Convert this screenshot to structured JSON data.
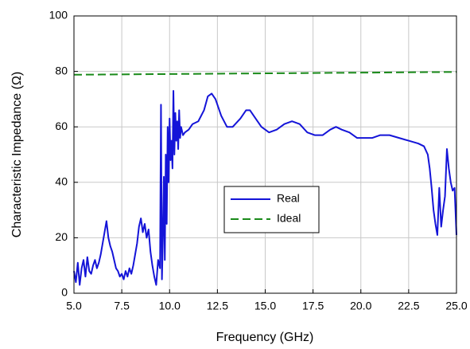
{
  "chart_data": {
    "type": "line",
    "xlabel": "Frequency (GHz)",
    "ylabel": "Characteristic Impedance (Ω)",
    "series": [
      {
        "name": "Real",
        "color": "#1414d8",
        "linestyle": "solid",
        "x": [
          5.0,
          5.1,
          5.2,
          5.3,
          5.4,
          5.5,
          5.6,
          5.7,
          5.8,
          5.9,
          6.0,
          6.1,
          6.2,
          6.3,
          6.4,
          6.5,
          6.6,
          6.7,
          6.8,
          6.9,
          7.0,
          7.1,
          7.2,
          7.3,
          7.4,
          7.5,
          7.6,
          7.7,
          7.8,
          7.9,
          8.0,
          8.1,
          8.2,
          8.3,
          8.4,
          8.5,
          8.6,
          8.7,
          8.8,
          8.9,
          9.0,
          9.1,
          9.2,
          9.3,
          9.4,
          9.5,
          9.55,
          9.6,
          9.65,
          9.7,
          9.75,
          9.8,
          9.85,
          9.9,
          9.95,
          10.0,
          10.05,
          10.1,
          10.15,
          10.2,
          10.25,
          10.3,
          10.35,
          10.4,
          10.45,
          10.5,
          10.55,
          10.6,
          10.7,
          10.8,
          11.0,
          11.2,
          11.5,
          11.8,
          12.0,
          12.2,
          12.4,
          12.7,
          13.0,
          13.3,
          13.7,
          14.0,
          14.2,
          14.5,
          14.8,
          15.2,
          15.6,
          16.0,
          16.4,
          16.8,
          17.2,
          17.6,
          18.0,
          18.4,
          18.7,
          19.0,
          19.4,
          19.8,
          20.2,
          20.6,
          21.0,
          21.5,
          22.0,
          22.5,
          23.0,
          23.3,
          23.5,
          23.6,
          23.7,
          23.8,
          23.9,
          24.0,
          24.1,
          24.2,
          24.3,
          24.4,
          24.5,
          24.6,
          24.7,
          24.8,
          24.9,
          25.0
        ],
        "values": [
          8,
          4,
          11,
          3,
          9,
          12,
          6,
          13,
          8,
          7,
          10,
          12,
          9,
          11,
          14,
          18,
          22,
          26,
          20,
          17,
          15,
          12,
          9,
          8,
          6,
          7,
          5,
          8,
          6,
          9,
          7,
          10,
          14,
          18,
          24,
          27,
          22,
          25,
          20,
          23,
          15,
          10,
          6,
          3,
          12,
          9,
          68,
          5,
          20,
          42,
          12,
          50,
          25,
          60,
          40,
          63,
          48,
          55,
          45,
          73,
          50,
          65,
          55,
          62,
          52,
          66,
          56,
          60,
          57,
          58,
          59,
          61,
          62,
          66,
          71,
          72,
          70,
          64,
          60,
          60,
          63,
          66,
          66,
          63,
          60,
          58,
          59,
          61,
          62,
          61,
          58,
          57,
          57,
          59,
          60,
          59,
          58,
          56,
          56,
          56,
          57,
          57,
          56,
          55,
          54,
          53,
          50,
          45,
          38,
          30,
          25,
          21,
          38,
          24,
          30,
          35,
          52,
          45,
          40,
          37,
          38,
          21
        ]
      },
      {
        "name": "Ideal",
        "color": "#1a8a1a",
        "linestyle": "dashed",
        "x": [
          5.0,
          25.0
        ],
        "values": [
          78.8,
          79.8
        ]
      }
    ],
    "xlim": [
      5,
      25
    ],
    "xticks": [
      {
        "value": 5,
        "label": "5.0"
      },
      {
        "value": 7.5,
        "label": "7.5"
      },
      {
        "value": 10,
        "label": "10.0"
      },
      {
        "value": 12.5,
        "label": "12.5"
      },
      {
        "value": 15,
        "label": "15.0"
      },
      {
        "value": 17.5,
        "label": "17.5"
      },
      {
        "value": 20,
        "label": "20.0"
      },
      {
        "value": 22.5,
        "label": "22.5"
      },
      {
        "value": 25,
        "label": "25.0"
      }
    ],
    "ylim": [
      0,
      100
    ],
    "yticks": [
      0,
      20,
      40,
      60,
      80,
      100
    ],
    "grid": true,
    "legend": "center"
  }
}
